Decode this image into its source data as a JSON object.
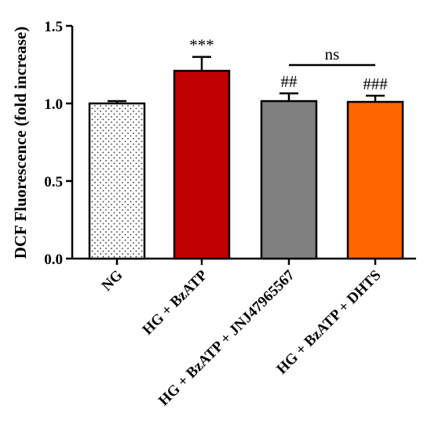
{
  "chart_data": {
    "type": "bar",
    "ylabel": "DCF  Fluorescence (fold increase)",
    "ylim": [
      0,
      1.5
    ],
    "yticks": [
      "0.0",
      "0.5",
      "1.0",
      "1.5"
    ],
    "ytick_values": [
      0,
      0.5,
      1.0,
      1.5
    ],
    "categories": [
      "NG",
      "HG + BzATP",
      "HG + BzATP + JNJ47965567",
      "HG + BzATP + DHTS"
    ],
    "values": [
      1.0,
      1.21,
      1.015,
      1.01
    ],
    "errors": [
      0.015,
      0.09,
      0.05,
      0.04
    ],
    "significance": [
      "",
      "***",
      "##",
      "###"
    ],
    "bracket": {
      "from": 2,
      "to": 3,
      "label": "ns"
    },
    "colors": [
      "#ffffff",
      "#c00000",
      "#808080",
      "#ff6600"
    ],
    "patterns": [
      "dots",
      "solid",
      "solid",
      "solid"
    ]
  }
}
